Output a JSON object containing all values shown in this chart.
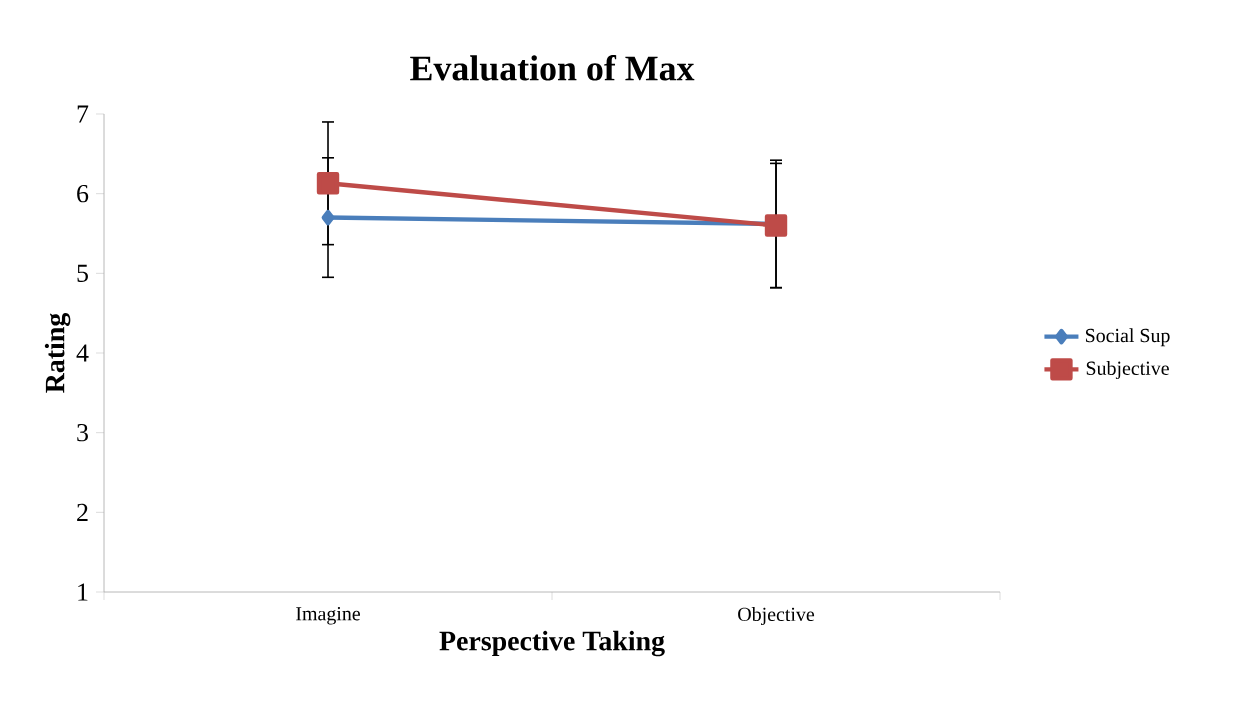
{
  "chart_data": {
    "type": "line",
    "title": "Evaluation of Max",
    "xlabel": "Perspective Taking",
    "ylabel": "Rating",
    "categories": [
      "Imagine",
      "Objective"
    ],
    "series": [
      {
        "name": "Social Sup",
        "color": "#4a7ebb",
        "marker": "diamond",
        "values": [
          5.7,
          5.62
        ],
        "errors": [
          0.75,
          0.8
        ]
      },
      {
        "name": "Subjective",
        "color": "#be4b48",
        "marker": "square",
        "values": [
          6.13,
          5.6
        ],
        "errors": [
          0.77,
          0.78
        ]
      }
    ],
    "ylim": [
      1,
      7
    ],
    "yticks": [
      1,
      2,
      3,
      4,
      5,
      6,
      7
    ],
    "grid": false,
    "legend": "right"
  }
}
